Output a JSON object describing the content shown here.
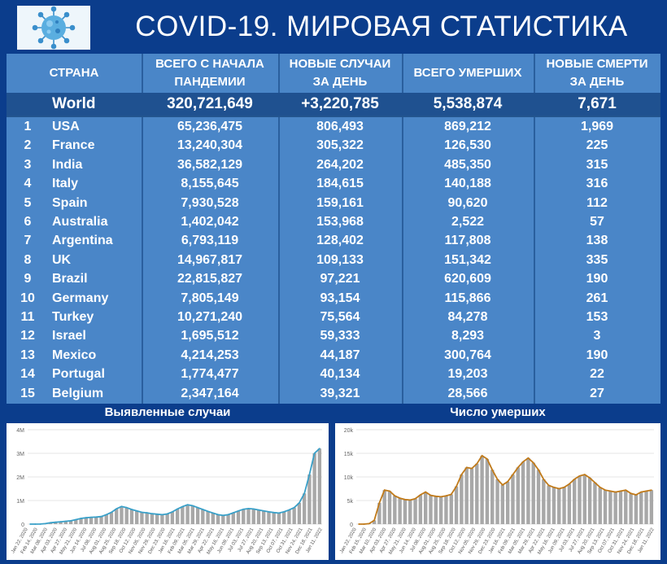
{
  "header": {
    "title": "COVID-19. МИРОВАЯ СТАТИСТИКА",
    "logo_icon": "coronavirus-icon"
  },
  "table": {
    "headers": {
      "country": "СТРАНА",
      "total_cases": [
        "ВСЕГО С НАЧАЛА",
        "ПАНДЕМИИ"
      ],
      "new_cases": [
        "НОВЫЕ СЛУЧАИ",
        "ЗА ДЕНЬ"
      ],
      "total_deaths": "ВСЕГО УМЕРШИХ",
      "new_deaths": [
        "НОВЫЕ СМЕРТИ",
        "ЗА ДЕНЬ"
      ]
    },
    "world": {
      "name": "World",
      "total_cases": "320,721,649",
      "new_cases": "+3,220,785",
      "total_deaths": "5,538,874",
      "new_deaths": "7,671"
    },
    "rows": [
      {
        "rank": "1",
        "country": "USA",
        "total_cases": "65,236,475",
        "new_cases": "806,493",
        "total_deaths": "869,212",
        "new_deaths": "1,969"
      },
      {
        "rank": "2",
        "country": "France",
        "total_cases": "13,240,304",
        "new_cases": "305,322",
        "total_deaths": "126,530",
        "new_deaths": "225"
      },
      {
        "rank": "3",
        "country": "India",
        "total_cases": "36,582,129",
        "new_cases": "264,202",
        "total_deaths": "485,350",
        "new_deaths": "315"
      },
      {
        "rank": "4",
        "country": "Italy",
        "total_cases": "8,155,645",
        "new_cases": "184,615",
        "total_deaths": "140,188",
        "new_deaths": "316"
      },
      {
        "rank": "5",
        "country": "Spain",
        "total_cases": "7,930,528",
        "new_cases": "159,161",
        "total_deaths": "90,620",
        "new_deaths": "112"
      },
      {
        "rank": "6",
        "country": "Australia",
        "total_cases": "1,402,042",
        "new_cases": "153,968",
        "total_deaths": "2,522",
        "new_deaths": "57"
      },
      {
        "rank": "7",
        "country": "Argentina",
        "total_cases": "6,793,119",
        "new_cases": "128,402",
        "total_deaths": "117,808",
        "new_deaths": "138"
      },
      {
        "rank": "8",
        "country": "UK",
        "total_cases": "14,967,817",
        "new_cases": "109,133",
        "total_deaths": "151,342",
        "new_deaths": "335"
      },
      {
        "rank": "9",
        "country": "Brazil",
        "total_cases": "22,815,827",
        "new_cases": "97,221",
        "total_deaths": "620,609",
        "new_deaths": "190"
      },
      {
        "rank": "10",
        "country": "Germany",
        "total_cases": "7,805,149",
        "new_cases": "93,154",
        "total_deaths": "115,866",
        "new_deaths": "261"
      },
      {
        "rank": "11",
        "country": "Turkey",
        "total_cases": "10,271,240",
        "new_cases": "75,564",
        "total_deaths": "84,278",
        "new_deaths": "153"
      },
      {
        "rank": "12",
        "country": "Israel",
        "total_cases": "1,695,512",
        "new_cases": "59,333",
        "total_deaths": "8,293",
        "new_deaths": "3"
      },
      {
        "rank": "13",
        "country": "Mexico",
        "total_cases": "4,214,253",
        "new_cases": "44,187",
        "total_deaths": "300,764",
        "new_deaths": "190"
      },
      {
        "rank": "14",
        "country": "Portugal",
        "total_cases": "1,774,477",
        "new_cases": "40,134",
        "total_deaths": "19,203",
        "new_deaths": "22"
      },
      {
        "rank": "15",
        "country": "Belgium",
        "total_cases": "2,347,164",
        "new_cases": "39,321",
        "total_deaths": "28,566",
        "new_deaths": "27"
      }
    ]
  },
  "colors": {
    "header_bg": "#0b3d8c",
    "table_bg": "#4a86c8",
    "world_row_bg": "#1f5190",
    "cases_line": "#3aa0c8",
    "deaths_line": "#c07a1a",
    "bars": "#a0a0a0"
  },
  "chart_data": [
    {
      "type": "bar",
      "title": "Выявленные случаи",
      "y_ticks": [
        "0",
        "1M",
        "2M",
        "3M",
        "4M"
      ],
      "ylim": [
        0,
        4000000
      ],
      "x_tick_labels": [
        "Jan 22, 2020",
        "Feb 14, 2020",
        "Mar 08, 2020",
        "Apr 03, 2020",
        "Apr 27, 2020",
        "May 21, 2020",
        "Jun 14, 2020",
        "Jul 08, 2020",
        "Aug 01, 2020",
        "Aug 25, 2020",
        "Sep 18, 2020",
        "Oct 12, 2020",
        "Nov 05, 2020",
        "Nov 29, 2020",
        "Dec 23, 2020",
        "Jan 16, 2021",
        "Feb 09, 2021",
        "Mar 05, 2021",
        "Mar 29, 2021",
        "Apr 22, 2021",
        "May 16, 2021",
        "Jun 09, 2021",
        "Jul 03, 2021",
        "Jul 27, 2021",
        "Aug 20, 2021",
        "Sep 13, 2021",
        "Oct 07, 2021",
        "Oct 31, 2021",
        "Nov 24, 2021",
        "Dec 18, 2021",
        "Jan 11, 2022"
      ],
      "series": [
        {
          "values": [
            0,
            1000,
            3000,
            20000,
            60000,
            80000,
            100000,
            120000,
            140000,
            190000,
            240000,
            270000,
            290000,
            300000,
            320000,
            400000,
            500000,
            650000,
            750000,
            700000,
            620000,
            560000,
            500000,
            480000,
            440000,
            420000,
            400000,
            430000,
            520000,
            640000,
            740000,
            820000,
            780000,
            700000,
            620000,
            540000,
            470000,
            400000,
            370000,
            400000,
            480000,
            560000,
            630000,
            660000,
            640000,
            600000,
            560000,
            520000,
            490000,
            470000,
            520000,
            600000,
            700000,
            900000,
            1300000,
            2100000,
            3000000,
            3200000
          ]
        }
      ]
    },
    {
      "type": "bar",
      "title": "Число умерших",
      "y_ticks": [
        "0",
        "5k",
        "10k",
        "15k",
        "20k"
      ],
      "ylim": [
        0,
        20000
      ],
      "x_tick_labels": [
        "Jan 22, 2020",
        "Feb 15, 2020",
        "Mar 10, 2020",
        "Apr 03, 2020",
        "Apr 27, 2020",
        "May 21, 2020",
        "Jun 14, 2020",
        "Jul 08, 2020",
        "Aug 01, 2020",
        "Aug 25, 2020",
        "Sep 18, 2020",
        "Oct 12, 2020",
        "Nov 05, 2020",
        "Nov 29, 2020",
        "Dec 23, 2020",
        "Jan 16, 2021",
        "Feb 09, 2021",
        "Mar 05, 2021",
        "Mar 29, 2021",
        "Apr 22, 2021",
        "May 16, 2021",
        "Jun 09, 2021",
        "Jul 03, 2021",
        "Jul 27, 2021",
        "Aug 20, 2021",
        "Sep 13, 2021",
        "Oct 07, 2021",
        "Oct 31, 2021",
        "Nov 24, 2021",
        "Dec 18, 2021",
        "Jan 11, 2022"
      ],
      "series": [
        {
          "values": [
            0,
            0,
            100,
            800,
            4500,
            7200,
            7000,
            6000,
            5500,
            5200,
            5100,
            5400,
            6200,
            6800,
            6100,
            5900,
            5800,
            6000,
            6300,
            8000,
            10500,
            12000,
            11800,
            12800,
            14500,
            13800,
            11500,
            9500,
            8300,
            9000,
            10500,
            12000,
            13200,
            14000,
            13000,
            11500,
            9500,
            8200,
            7800,
            7500,
            7800,
            8500,
            9500,
            10200,
            10500,
            9800,
            8800,
            7800,
            7200,
            7000,
            6800,
            7000,
            7200,
            6500,
            6200,
            6800,
            7000,
            7200
          ]
        }
      ]
    }
  ]
}
